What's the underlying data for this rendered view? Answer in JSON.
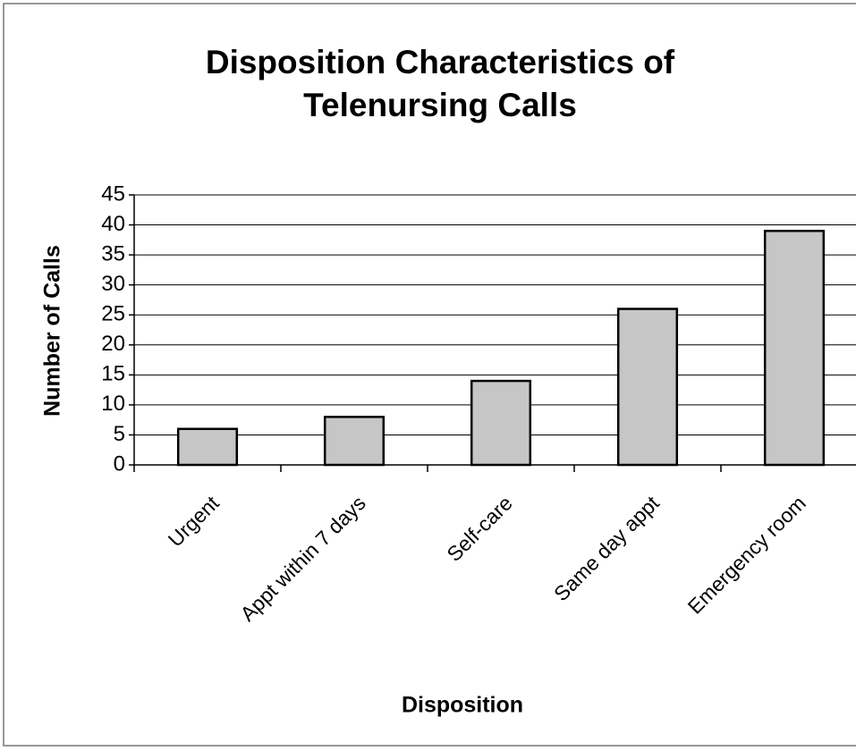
{
  "chart_data": {
    "type": "bar",
    "title": [
      "Disposition Characteristics of",
      "Telenursing Calls"
    ],
    "x_label": "Disposition",
    "y_label": "Number of Calls",
    "categories": [
      "Urgent",
      "Appt within 7 days",
      "Self-care",
      "Same day appt",
      "Emergency room"
    ],
    "values": [
      6,
      8,
      14,
      26,
      39
    ],
    "color": "#c6c6c6",
    "ylim": [
      0,
      45
    ],
    "yticks": [
      0,
      5,
      10,
      15,
      20,
      25,
      30,
      35,
      40,
      45
    ],
    "grid": true
  }
}
